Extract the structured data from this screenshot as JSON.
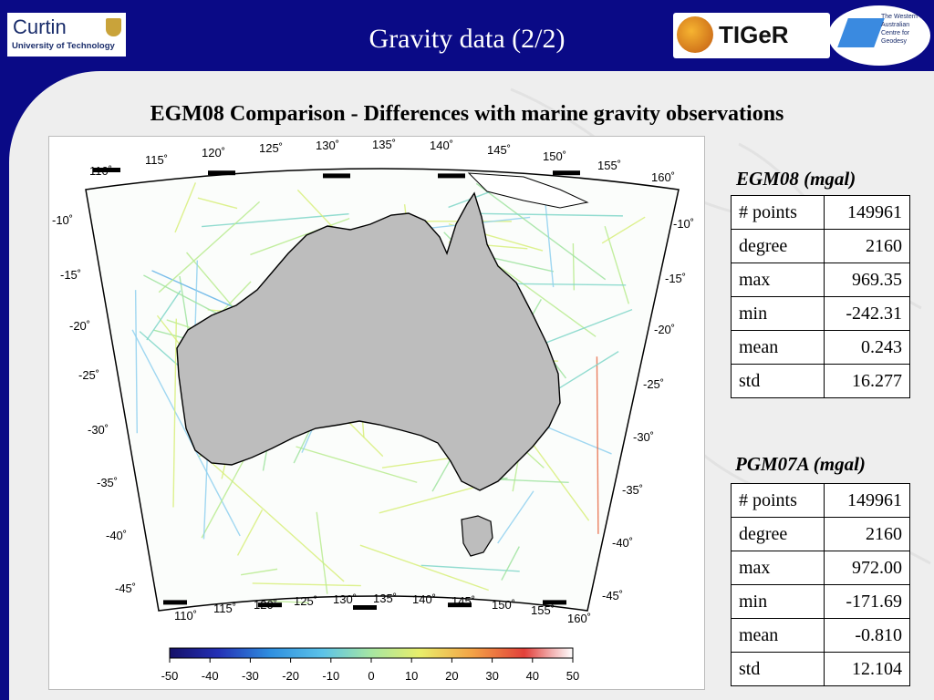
{
  "header": {
    "title": "Gravity data (2/2)",
    "curtin_logo": {
      "name": "Curtin",
      "subtitle": "University of Technology"
    },
    "tiger_logo": {
      "name": "TIGeR"
    },
    "wacg_logo": {
      "text": "The Western Australian Centre for Geodesy"
    }
  },
  "subtitle": "EGM08 Comparison - Differences with marine gravity observations",
  "map": {
    "lon_labels_top": [
      "110˚",
      "115˚",
      "120˚",
      "125˚",
      "130˚",
      "135˚",
      "140˚",
      "145˚",
      "150˚",
      "155˚",
      "160˚"
    ],
    "lon_labels_bottom": [
      "110˚",
      "115˚",
      "120˚",
      "125˚",
      "130˚",
      "135˚",
      "140˚",
      "145˚",
      "150˚",
      "155˚",
      "160˚"
    ],
    "lat_labels_left": [
      "-10˚",
      "-15˚",
      "-20˚",
      "-25˚",
      "-30˚",
      "-35˚",
      "-40˚",
      "-45˚"
    ],
    "lat_labels_right": [
      "-10˚",
      "-15˚",
      "-20˚",
      "-25˚",
      "-30˚",
      "-35˚",
      "-40˚",
      "-45˚"
    ],
    "colorbar_ticks": [
      "-50",
      "-40",
      "-30",
      "-20",
      "-10",
      "0",
      "10",
      "20",
      "30",
      "40",
      "50"
    ]
  },
  "tables": [
    {
      "title": "EGM08 (mgal)",
      "rows": [
        {
          "k": "# points",
          "v": "149961"
        },
        {
          "k": "degree",
          "v": "2160"
        },
        {
          "k": "max",
          "v": "969.35"
        },
        {
          "k": "min",
          "v": "-242.31"
        },
        {
          "k": "mean",
          "v": "0.243"
        },
        {
          "k": "std",
          "v": "16.277"
        }
      ]
    },
    {
      "title": "PGM07A (mgal)",
      "rows": [
        {
          "k": "# points",
          "v": "149961"
        },
        {
          "k": "degree",
          "v": "2160"
        },
        {
          "k": "max",
          "v": "972.00"
        },
        {
          "k": "min",
          "v": "-171.69"
        },
        {
          "k": "mean",
          "v": "-0.810"
        },
        {
          "k": "std",
          "v": "12.104"
        }
      ]
    }
  ],
  "colors": {
    "header_bg": "#0a0a86",
    "content_bg": "#eeeeee",
    "land": "#bdbdbd"
  }
}
